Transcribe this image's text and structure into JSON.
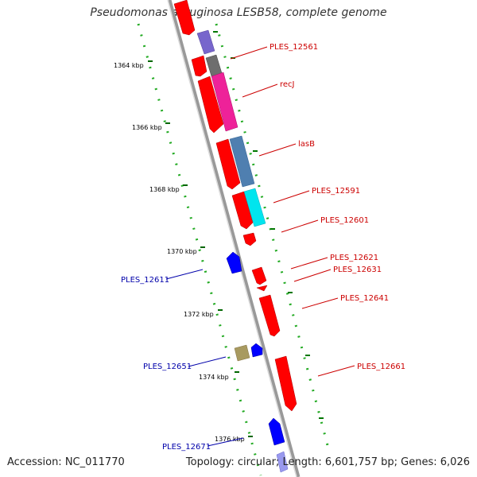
{
  "title": "Pseudomonas aeruginosa LESB58, complete genome",
  "footer": {
    "accession": "Accession: NC_011770",
    "summary": "Topology: circular; Length: 6,601,757 bp; Genes: 6,026"
  },
  "colors": {
    "forward_label": "#cc0000",
    "reverse_label": "#0000aa",
    "backbone": "#888888",
    "tick": "#006600",
    "feature_red": "#ff0000",
    "feature_blue": "#0000ff"
  },
  "scale": {
    "unit": "kbp",
    "labels": [
      "1364 kbp",
      "1366 kbp",
      "1368 kbp",
      "1370 kbp",
      "1372 kbp",
      "1374 kbp",
      "1376 kbp"
    ]
  },
  "features": {
    "forward": [
      {
        "label": "PLES_12561",
        "color": "#ff0000"
      },
      {
        "label": "recJ",
        "color": "#ff0000"
      },
      {
        "label": "lasB",
        "color": "#ff0000"
      },
      {
        "label": "PLES_12591",
        "color": "#ff0000"
      },
      {
        "label": "PLES_12601",
        "color": "#ff0000"
      },
      {
        "label": "PLES_12621",
        "color": "#ff0000"
      },
      {
        "label": "PLES_12631",
        "color": "#ff0000"
      },
      {
        "label": "PLES_12641",
        "color": "#ff0000"
      },
      {
        "label": "PLES_12661",
        "color": "#ff0000"
      }
    ],
    "reverse": [
      {
        "label": "PLES_12611",
        "color": "#0000ff"
      },
      {
        "label": "PLES_12651",
        "color": "#0000ff"
      },
      {
        "label": "PLES_12671",
        "color": "#0000ff"
      }
    ]
  }
}
